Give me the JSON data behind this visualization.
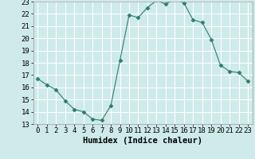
{
  "x": [
    0,
    1,
    2,
    3,
    4,
    5,
    6,
    7,
    8,
    9,
    10,
    11,
    12,
    13,
    14,
    15,
    16,
    17,
    18,
    19,
    20,
    21,
    22,
    23
  ],
  "y": [
    16.7,
    16.2,
    15.8,
    14.9,
    14.2,
    14.0,
    13.4,
    13.3,
    14.5,
    18.2,
    21.9,
    21.7,
    22.5,
    23.1,
    22.8,
    23.2,
    22.9,
    21.5,
    21.3,
    19.9,
    17.8,
    17.3,
    17.2,
    16.5
  ],
  "line_color": "#2e7d6e",
  "marker": "D",
  "marker_size": 2.5,
  "bg_color": "#ceeaea",
  "grid_color": "#ffffff",
  "xlabel": "Humidex (Indice chaleur)",
  "ylim": [
    13,
    23
  ],
  "xlim": [
    -0.5,
    23.5
  ],
  "yticks": [
    13,
    14,
    15,
    16,
    17,
    18,
    19,
    20,
    21,
    22,
    23
  ],
  "xticks": [
    0,
    1,
    2,
    3,
    4,
    5,
    6,
    7,
    8,
    9,
    10,
    11,
    12,
    13,
    14,
    15,
    16,
    17,
    18,
    19,
    20,
    21,
    22,
    23
  ],
  "xlabel_fontsize": 7.5,
  "tick_fontsize": 6.5
}
